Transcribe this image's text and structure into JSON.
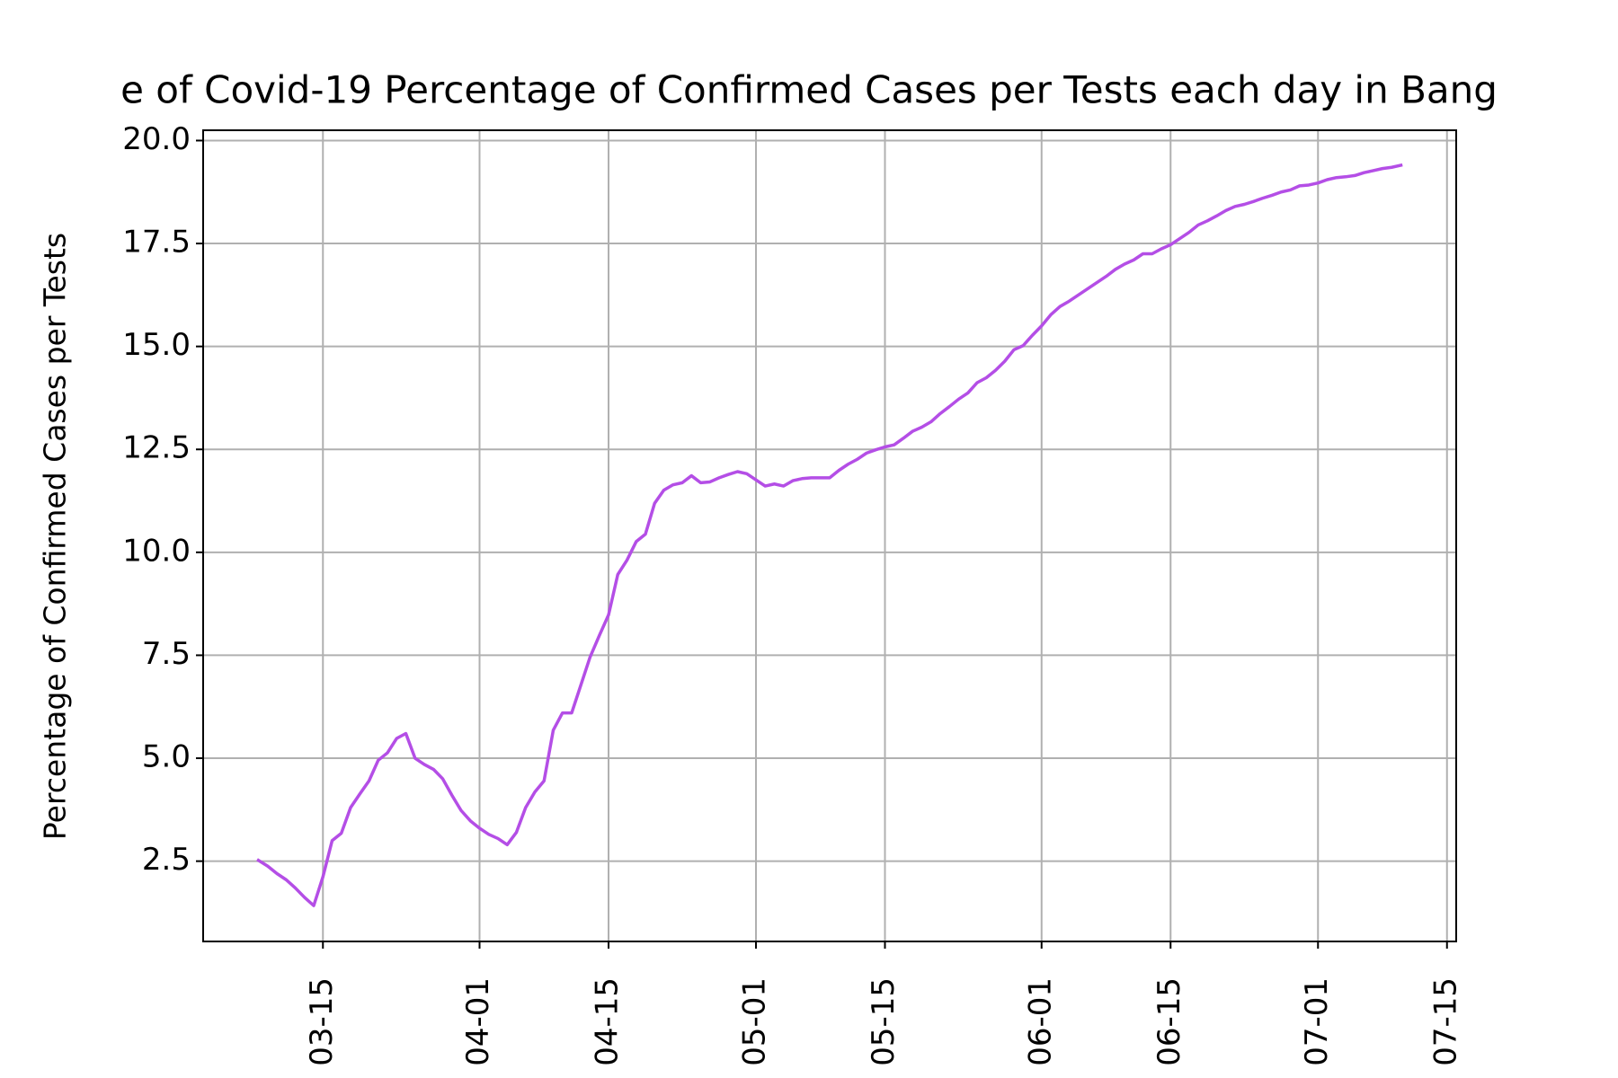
{
  "chart_data": {
    "type": "line",
    "title": "e of Covid-19 Percentage of Confirmed Cases per Tests each day in Bang",
    "ylabel": "Percentage of Confirmed Cases per Tests",
    "color": "#b44ee6",
    "grid": true,
    "x": [
      "03-08",
      "03-09",
      "03-10",
      "03-11",
      "03-12",
      "03-13",
      "03-14",
      "03-15",
      "03-16",
      "03-17",
      "03-18",
      "03-19",
      "03-20",
      "03-21",
      "03-22",
      "03-23",
      "03-24",
      "03-25",
      "03-26",
      "03-27",
      "03-28",
      "03-29",
      "03-30",
      "03-31",
      "04-01",
      "04-02",
      "04-03",
      "04-04",
      "04-05",
      "04-06",
      "04-07",
      "04-08",
      "04-09",
      "04-10",
      "04-11",
      "04-12",
      "04-13",
      "04-14",
      "04-15",
      "04-16",
      "04-17",
      "04-18",
      "04-19",
      "04-20",
      "04-21",
      "04-22",
      "04-23",
      "04-24",
      "04-25",
      "04-26",
      "04-27",
      "04-28",
      "04-29",
      "04-30",
      "05-01",
      "05-02",
      "05-03",
      "05-04",
      "05-05",
      "05-06",
      "05-07",
      "05-08",
      "05-09",
      "05-10",
      "05-11",
      "05-12",
      "05-13",
      "05-14",
      "05-15",
      "05-16",
      "05-17",
      "05-18",
      "05-19",
      "05-20",
      "05-21",
      "05-22",
      "05-23",
      "05-24",
      "05-25",
      "05-26",
      "05-27",
      "05-28",
      "05-29",
      "05-30",
      "05-31",
      "06-01",
      "06-02",
      "06-03",
      "06-04",
      "06-05",
      "06-06",
      "06-07",
      "06-08",
      "06-09",
      "06-10",
      "06-11",
      "06-12",
      "06-13",
      "06-14",
      "06-15",
      "06-16",
      "06-17",
      "06-18",
      "06-19",
      "06-20",
      "06-21",
      "06-22",
      "06-23",
      "06-24",
      "06-25",
      "06-26",
      "06-27",
      "06-28",
      "06-29",
      "06-30",
      "07-01",
      "07-02",
      "07-03",
      "07-04",
      "07-05",
      "07-06",
      "07-07",
      "07-08",
      "07-09",
      "07-10"
    ],
    "values": [
      2.52,
      2.38,
      2.2,
      2.05,
      1.85,
      1.62,
      1.42,
      2.12,
      3.0,
      3.18,
      3.8,
      4.13,
      4.45,
      4.95,
      5.13,
      5.48,
      5.6,
      5.0,
      4.85,
      4.73,
      4.5,
      4.1,
      3.73,
      3.48,
      3.3,
      3.15,
      3.05,
      2.9,
      3.2,
      3.8,
      4.18,
      4.45,
      5.68,
      6.1,
      6.1,
      6.78,
      7.46,
      7.98,
      8.48,
      9.46,
      9.81,
      10.26,
      10.44,
      11.19,
      11.51,
      11.64,
      11.69,
      11.86,
      11.69,
      11.71,
      11.81,
      11.89,
      11.96,
      11.91,
      11.76,
      11.61,
      11.66,
      11.61,
      11.74,
      11.79,
      11.81,
      11.81,
      11.81,
      11.99,
      12.14,
      12.26,
      12.41,
      12.49,
      12.56,
      12.61,
      12.77,
      12.94,
      13.04,
      13.17,
      13.37,
      13.54,
      13.72,
      13.87,
      14.12,
      14.24,
      14.42,
      14.64,
      14.92,
      15.02,
      15.27,
      15.5,
      15.77,
      15.97,
      16.1,
      16.25,
      16.4,
      16.55,
      16.7,
      16.87,
      17.0,
      17.1,
      17.25,
      17.25,
      17.37,
      17.47,
      17.62,
      17.77,
      17.95,
      18.05,
      18.17,
      18.3,
      18.4,
      18.45,
      18.52,
      18.6,
      18.67,
      18.75,
      18.8,
      18.9,
      18.92,
      18.97,
      19.05,
      19.1,
      19.12,
      19.15,
      19.22,
      19.27,
      19.32,
      19.35,
      19.4
    ],
    "xlim": [
      "03-02",
      "07-16"
    ],
    "xticks": [
      "03-15",
      "04-01",
      "04-15",
      "05-01",
      "05-15",
      "06-01",
      "06-15",
      "07-01",
      "07-15"
    ],
    "ylim": [
      0.55,
      20.25
    ],
    "yticks": [
      2.5,
      {
        "value": 5,
        "label": "5.0"
      },
      7.5,
      {
        "value": 10,
        "label": "10.0"
      },
      12.5,
      {
        "value": 15,
        "label": "15.0"
      },
      17.5,
      {
        "value": 20,
        "label": "20.0"
      }
    ]
  }
}
